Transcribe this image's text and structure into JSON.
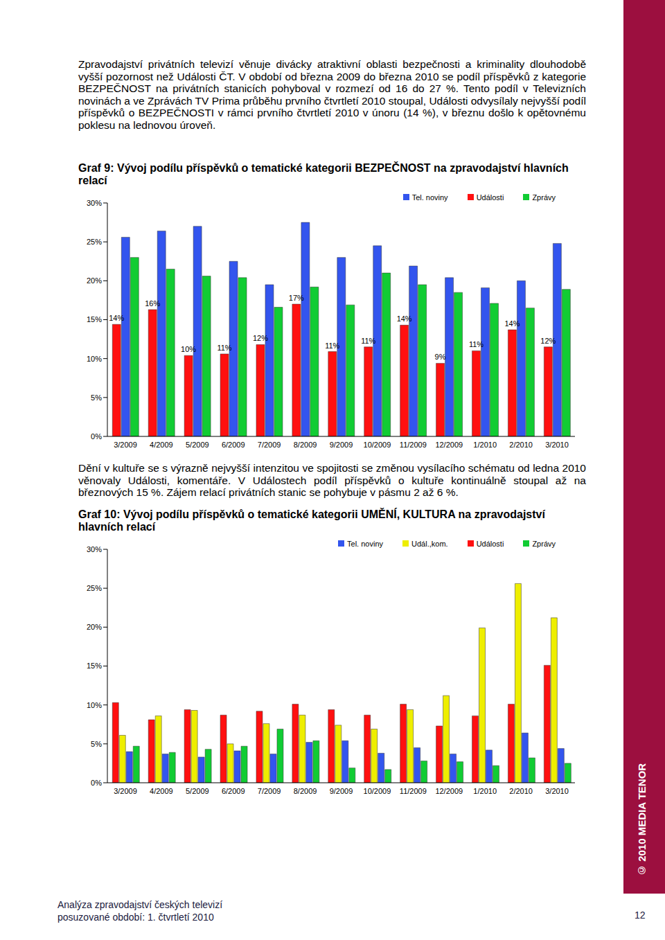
{
  "paragraphs": [
    "Zpravodajství privátních televizí věnuje divácky atraktivní oblasti bezpečnosti a kriminality dlouhodobě vyšší pozornost než Události ČT. V období od března 2009 do března 2010 se podíl příspěvků z kategorie BEZPEČNOST na privátních stanicích pohyboval v rozmezí od 16 do 27 %. Tento podíl v Televizních novinách a ve Zprávách TV Prima průběhu prvního čtvrtletí 2010 stoupal, Události odvysílaly nejvyšší podíl příspěvků o BEZPEČNOSTI v rámci prvního čtvrtletí 2010 v únoru (14 %), v březnu došlo k opětovnému poklesu na lednovou úroveň.",
    "Dění v kultuře se s výrazně nejvyšší intenzitou ve spojitosti se změnou vysílacího schématu od ledna 2010 věnovaly Události, komentáře. V Událostech podíl příspěvků o kultuře kontinuálně stoupal až na březnových 15 %. Zájem relací privátních stanic se pohybuje v pásmu 2 až 6 %."
  ],
  "chart_data": [
    {
      "type": "bar",
      "title": "Graf 9: Vývoj podílu příspěvků o tematické kategorii BEZPEČNOST na zpravodajství hlavních relací",
      "categories": [
        "3/2009",
        "4/2009",
        "5/2009",
        "6/2009",
        "7/2009",
        "8/2009",
        "9/2009",
        "10/2009",
        "11/2009",
        "12/2009",
        "1/2010",
        "2/2010",
        "3/2010"
      ],
      "series": [
        {
          "name": "Události",
          "color": "#ff1010",
          "values": [
            14.4,
            16.3,
            10.4,
            10.6,
            11.8,
            17.0,
            10.9,
            11.5,
            14.3,
            9.4,
            11.0,
            13.7,
            11.5
          ],
          "data_labels": true,
          "value_labels": [
            "14%",
            "16%",
            "10%",
            "11%",
            "12%",
            "17%",
            "11%",
            "11%",
            "14%",
            "9%",
            "11%",
            "14%",
            "12%"
          ]
        },
        {
          "name": "Tel. noviny",
          "color": "#3355ee",
          "values": [
            25.6,
            26.4,
            27.0,
            22.5,
            19.5,
            27.5,
            23.0,
            24.5,
            21.9,
            20.4,
            19.1,
            20.0,
            24.8
          ]
        },
        {
          "name": "Zprávy",
          "color": "#11cc33",
          "values": [
            23.0,
            21.5,
            20.6,
            20.4,
            16.6,
            19.2,
            16.9,
            21.0,
            19.5,
            18.5,
            17.1,
            16.5,
            18.9
          ]
        }
      ],
      "ylim": [
        0,
        30
      ],
      "yticks": [
        {
          "value": 0,
          "label": "0%"
        },
        {
          "value": 5,
          "label": "5%"
        },
        {
          "value": 10,
          "label": "10%"
        },
        {
          "value": 15,
          "label": "15%"
        },
        {
          "value": 20,
          "label": "20%"
        },
        {
          "value": 25,
          "label": "25%"
        },
        {
          "value": 30,
          "label": "30%"
        }
      ],
      "grid": false,
      "legend": "upper right"
    },
    {
      "type": "bar",
      "title": "Graf 10: Vývoj podílu příspěvků o tematické kategorii UMĚNÍ, KULTURA na zpravodajství hlavních relací",
      "categories": [
        "3/2009",
        "4/2009",
        "5/2009",
        "6/2009",
        "7/2009",
        "8/2009",
        "9/2009",
        "10/2009",
        "11/2009",
        "12/2009",
        "1/2010",
        "2/2010",
        "3/2010"
      ],
      "series": [
        {
          "name": "Události",
          "color": "#ff1010",
          "values": [
            10.3,
            8.1,
            9.4,
            8.7,
            9.2,
            10.1,
            9.4,
            8.7,
            10.1,
            7.3,
            8.6,
            10.1,
            15.1
          ]
        },
        {
          "name": "Udál.,kom.",
          "color": "#eeee00",
          "values": [
            6.1,
            8.6,
            9.3,
            5.0,
            7.6,
            8.7,
            7.4,
            6.9,
            9.4,
            11.2,
            19.9,
            25.6,
            21.2
          ]
        },
        {
          "name": "Tel. noviny",
          "color": "#3355ee",
          "values": [
            4.0,
            3.7,
            3.3,
            4.1,
            3.7,
            5.2,
            5.4,
            3.8,
            4.5,
            3.7,
            4.2,
            6.4,
            4.4
          ]
        },
        {
          "name": "Zprávy",
          "color": "#11cc33",
          "values": [
            4.7,
            3.9,
            4.3,
            4.7,
            6.9,
            5.4,
            1.9,
            1.7,
            2.8,
            2.7,
            2.2,
            3.2,
            2.5
          ]
        }
      ],
      "ylim": [
        0,
        30
      ],
      "yticks": [
        {
          "value": 0,
          "label": "0%"
        },
        {
          "value": 5,
          "label": "5%"
        },
        {
          "value": 10,
          "label": "10%"
        },
        {
          "value": 15,
          "label": "15%"
        },
        {
          "value": 20,
          "label": "20%"
        },
        {
          "value": 25,
          "label": "25%"
        },
        {
          "value": 30,
          "label": "30%"
        }
      ],
      "grid": false,
      "legend": "upper right"
    }
  ],
  "footer": [
    "Analýza zpravodajství českých televizí",
    "posuzované období: 1. čtvrtletí 2010"
  ],
  "sidebar": "© 2010 MEDIA TENOR",
  "page_number": 12
}
